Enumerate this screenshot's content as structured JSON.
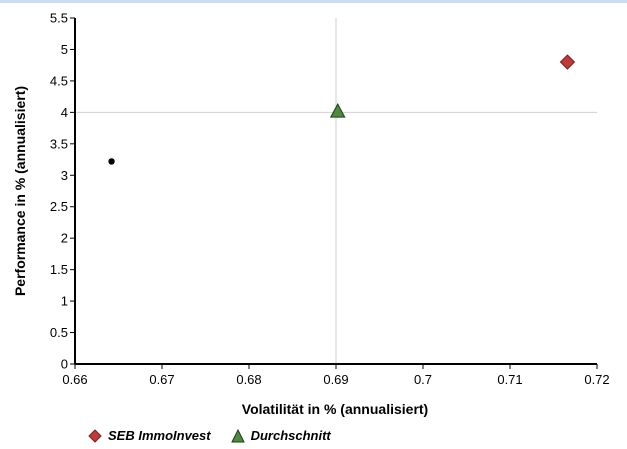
{
  "chart_data": {
    "type": "scatter",
    "title": "",
    "xlabel": "Volatilität in % (annualisiert)",
    "ylabel": "Performance in % (annualisiert)",
    "xlim": [
      0.66,
      0.72
    ],
    "ylim": [
      0,
      5.5
    ],
    "x_ticks": [
      "0.66",
      "0.67",
      "0.68",
      "0.69",
      "0.7",
      "0.71",
      "0.72"
    ],
    "y_ticks": [
      "0",
      "0.5",
      "1",
      "1.5",
      "2",
      "2.5",
      "3",
      "3.5",
      "4",
      "4.5",
      "5",
      "5.5"
    ],
    "grid": false,
    "crosshair": {
      "x": 0.69,
      "y": 4.0
    },
    "legend_position": "bottom-left",
    "series": [
      {
        "name": "SEB ImmoInvest",
        "marker": "diamond",
        "color": "#c0393b",
        "points": [
          {
            "x": 0.7166,
            "y": 4.8
          }
        ]
      },
      {
        "name": "Durchschnitt",
        "marker": "triangle",
        "color": "#4e8a3e",
        "points": [
          {
            "x": 0.6902,
            "y": 4.02
          }
        ]
      },
      {
        "marker": "dot",
        "color": "#000000",
        "points": [
          {
            "x": 0.6642,
            "y": 3.22
          }
        ]
      }
    ]
  }
}
